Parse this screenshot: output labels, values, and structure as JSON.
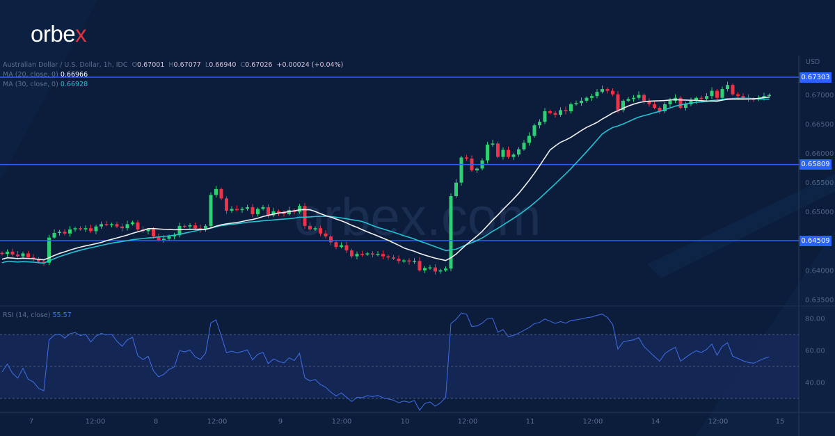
{
  "brand": {
    "logo_main": "orbe",
    "logo_accent": "x",
    "watermark": "orbex.com"
  },
  "header": {
    "symbol": "Australian Dollar / U.S. Dollar, 1h, IDC",
    "o_label": "O",
    "o": "0.67001",
    "h_label": "H",
    "h": "0.67077",
    "l_label": "L",
    "l": "0.66940",
    "c_label": "C",
    "c": "0.67026",
    "change": "+0.00024 (+0.04%)",
    "ma20_label": "MA (20, close, 0)",
    "ma20_value": "0.66966",
    "ma30_label": "MA (30, close, 0)",
    "ma30_value": "0.66928",
    "rsi_label": "RSI (14, close)",
    "rsi_value": "55.57"
  },
  "axis": {
    "currency": "USD",
    "price_ticks": [
      "0.67000",
      "0.66500",
      "0.66000",
      "0.65500",
      "0.65000",
      "0.64000",
      "0.63500"
    ],
    "rsi_ticks": [
      "80.00",
      "60.00",
      "40.00"
    ],
    "time_ticks": [
      "7",
      "12:00",
      "8",
      "12:00",
      "9",
      "12:00",
      "10",
      "12:00",
      "11",
      "12:00",
      "14",
      "12:00",
      "15"
    ]
  },
  "levels": [
    {
      "label": "0.67303",
      "price": 0.67303
    },
    {
      "label": "0.65809",
      "price": 0.65809
    },
    {
      "label": "0.64509",
      "price": 0.64509
    }
  ],
  "colors": {
    "up": "#2fcf73",
    "down": "#ec3348",
    "ma20": "#f2f2f2",
    "ma30": "#22c4d4",
    "level": "#2962ff",
    "rsi": "#3f6fe8"
  },
  "chart_data": {
    "type": "candlestick",
    "title": "Australian Dollar / U.S. Dollar, 1h",
    "ylabel": "USD",
    "ylim": [
      0.6335,
      0.6755
    ],
    "first_open": 0.643,
    "closes": [
      0.6428,
      0.6432,
      0.6427,
      0.6424,
      0.6429,
      0.6422,
      0.642,
      0.6415,
      0.6413,
      0.6456,
      0.6464,
      0.6466,
      0.6463,
      0.647,
      0.6472,
      0.647,
      0.6472,
      0.6467,
      0.6475,
      0.6479,
      0.6478,
      0.6479,
      0.6475,
      0.6472,
      0.6479,
      0.6482,
      0.647,
      0.6467,
      0.647,
      0.6458,
      0.6452,
      0.6454,
      0.6458,
      0.646,
      0.6476,
      0.6475,
      0.6477,
      0.6472,
      0.647,
      0.6476,
      0.6529,
      0.6539,
      0.6523,
      0.6502,
      0.6505,
      0.6503,
      0.6505,
      0.6508,
      0.6496,
      0.6505,
      0.6508,
      0.6494,
      0.6501,
      0.6498,
      0.6496,
      0.6503,
      0.65,
      0.651,
      0.6476,
      0.647,
      0.6472,
      0.6463,
      0.6458,
      0.6448,
      0.644,
      0.6443,
      0.6434,
      0.6424,
      0.6428,
      0.6427,
      0.6429,
      0.6427,
      0.6428,
      0.6424,
      0.6422,
      0.642,
      0.6416,
      0.6417,
      0.6415,
      0.6416,
      0.64,
      0.6404,
      0.6405,
      0.6398,
      0.64,
      0.6403,
      0.6527,
      0.655,
      0.6593,
      0.6591,
      0.6571,
      0.6574,
      0.6588,
      0.6615,
      0.6617,
      0.6594,
      0.6606,
      0.6594,
      0.6598,
      0.6607,
      0.6618,
      0.663,
      0.6648,
      0.6654,
      0.6672,
      0.6669,
      0.6666,
      0.6674,
      0.6672,
      0.6684,
      0.6686,
      0.669,
      0.6695,
      0.6698,
      0.6705,
      0.671,
      0.6707,
      0.6701,
      0.6674,
      0.669,
      0.6693,
      0.6695,
      0.67,
      0.669,
      0.6684,
      0.6678,
      0.6672,
      0.6684,
      0.669,
      0.6695,
      0.6678,
      0.6684,
      0.669,
      0.6695,
      0.6693,
      0.6698,
      0.6707,
      0.6695,
      0.671,
      0.6717,
      0.6701,
      0.6698,
      0.6695,
      0.6693,
      0.6692,
      0.6695,
      0.6698,
      0.67
    ],
    "rsi": {
      "period": 14,
      "ylim": [
        22,
        87
      ],
      "band": [
        30,
        70
      ],
      "midline": 50
    }
  }
}
